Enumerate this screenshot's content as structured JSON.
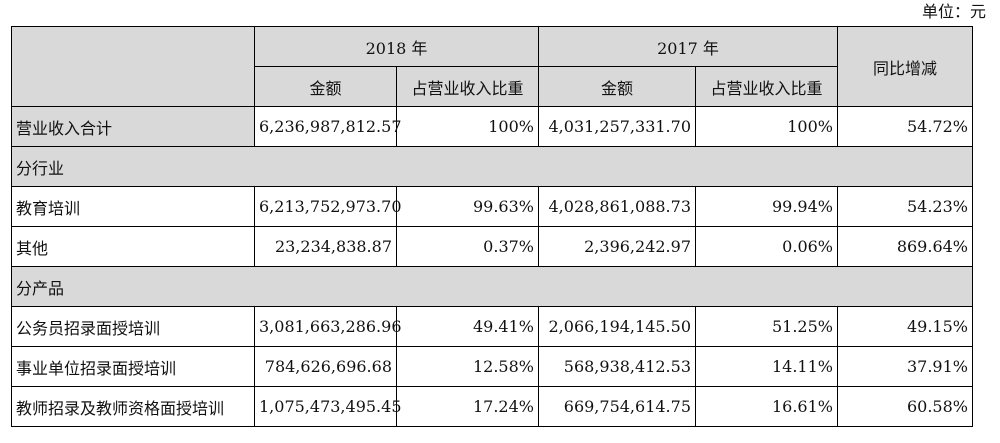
{
  "unit_label": "单位：元",
  "header": {
    "year_2018": "2018 年",
    "year_2017": "2017 年",
    "yoy": "同比增减",
    "amount": "金额",
    "share": "占营业收入比重"
  },
  "rows": {
    "total": {
      "label": "营业收入合计",
      "amount_2018": "6,236,987,812.57",
      "share_2018": "100%",
      "amount_2017": "4,031,257,331.70",
      "share_2017": "100%",
      "yoy": "54.72%"
    },
    "by_industry": {
      "label": "分行业",
      "items": [
        {
          "label": "教育培训",
          "amount_2018": "6,213,752,973.70",
          "share_2018": "99.63%",
          "amount_2017": "4,028,861,088.73",
          "share_2017": "99.94%",
          "yoy": "54.23%"
        },
        {
          "label": "其他",
          "amount_2018": "23,234,838.87",
          "share_2018": "0.37%",
          "amount_2017": "2,396,242.97",
          "share_2017": "0.06%",
          "yoy": "869.64%"
        }
      ]
    },
    "by_product": {
      "label": "分产品",
      "items": [
        {
          "label": "公务员招录面授培训",
          "amount_2018": "3,081,663,286.96",
          "share_2018": "49.41%",
          "amount_2017": "2,066,194,145.50",
          "share_2017": "51.25%",
          "yoy": "49.15%"
        },
        {
          "label": "事业单位招录面授培训",
          "amount_2018": "784,626,696.68",
          "share_2018": "12.58%",
          "amount_2017": "568,938,412.53",
          "share_2017": "14.11%",
          "yoy": "37.91%"
        },
        {
          "label": "教师招录及教师资格面授培训",
          "amount_2018": "1,075,473,495.45",
          "share_2018": "17.24%",
          "amount_2017": "669,754,614.75",
          "share_2017": "16.61%",
          "yoy": "60.58%"
        }
      ]
    }
  }
}
